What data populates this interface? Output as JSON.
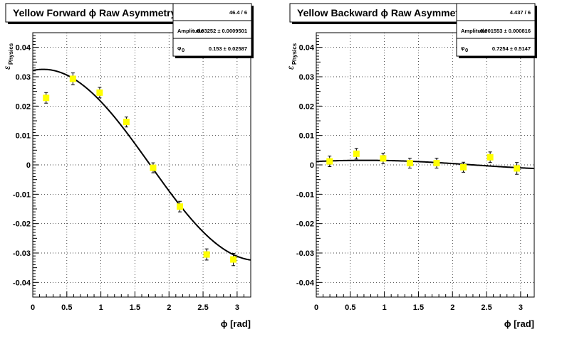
{
  "chart_data": [
    {
      "type": "scatter",
      "title": "Yellow Forward ϕ Raw Asymmetry",
      "xlabel": "ϕ [rad]",
      "ylabel": "ε",
      "ylabel_sub": "Physics",
      "xlim": [
        0,
        3.2
      ],
      "ylim": [
        -0.045,
        0.045
      ],
      "xticks": [
        "0",
        "0.5",
        "1",
        "1.5",
        "2",
        "2.5",
        "3"
      ],
      "yticks": [
        "0.04",
        "0.03",
        "0.02",
        "0.01",
        "0",
        "-0.01",
        "-0.02",
        "-0.03",
        "-0.04"
      ],
      "grid": true,
      "stats": {
        "header": "46.4 / 6",
        "rows": [
          {
            "label": "Amplitude",
            "value": "0.03252 ± 0.0009501"
          },
          {
            "label": "φ",
            "sub": "0",
            "value": "0.153 ± 0.02587"
          }
        ]
      },
      "points": [
        {
          "x": 0.196,
          "y": 0.0228,
          "err": 0.0018
        },
        {
          "x": 0.589,
          "y": 0.0293,
          "err": 0.002
        },
        {
          "x": 0.982,
          "y": 0.0246,
          "err": 0.0018
        },
        {
          "x": 1.374,
          "y": 0.0146,
          "err": 0.0017
        },
        {
          "x": 1.767,
          "y": -0.001,
          "err": 0.0017
        },
        {
          "x": 2.16,
          "y": -0.0142,
          "err": 0.0018
        },
        {
          "x": 2.553,
          "y": -0.0305,
          "err": 0.0019
        },
        {
          "x": 2.945,
          "y": -0.0322,
          "err": 0.0021
        }
      ],
      "fit": {
        "function": "amplitude*cos(x-phi0)",
        "amplitude": 0.03252,
        "phi0": 0.153
      }
    },
    {
      "type": "scatter",
      "title": "Yellow Backward ϕ Raw Asymmetry",
      "xlabel": "ϕ [rad]",
      "ylabel": "ε",
      "ylabel_sub": "Physics",
      "xlim": [
        0,
        3.2
      ],
      "ylim": [
        -0.045,
        0.045
      ],
      "xticks": [
        "0",
        "0.5",
        "1",
        "1.5",
        "2",
        "2.5",
        "3"
      ],
      "yticks": [
        "0.04",
        "0.03",
        "0.02",
        "0.01",
        "0",
        "-0.01",
        "-0.02",
        "-0.03",
        "-0.04"
      ],
      "grid": true,
      "stats": {
        "header": "4.437 / 6",
        "rows": [
          {
            "label": "Amplitude",
            "value": "0.001553 ± 0.000816"
          },
          {
            "label": "φ",
            "sub": "0",
            "value": "0.7254 ± 0.5147"
          }
        ]
      },
      "points": [
        {
          "x": 0.196,
          "y": 0.0012,
          "err": 0.0018
        },
        {
          "x": 0.589,
          "y": 0.0038,
          "err": 0.0018
        },
        {
          "x": 0.982,
          "y": 0.0022,
          "err": 0.0018
        },
        {
          "x": 1.374,
          "y": 0.0006,
          "err": 0.0017
        },
        {
          "x": 1.767,
          "y": 0.0006,
          "err": 0.0017
        },
        {
          "x": 2.16,
          "y": -0.0008,
          "err": 0.0017
        },
        {
          "x": 2.553,
          "y": 0.0026,
          "err": 0.0018
        },
        {
          "x": 2.945,
          "y": -0.0012,
          "err": 0.002
        }
      ],
      "fit": {
        "function": "amplitude*cos(x-phi0)",
        "amplitude": 0.001553,
        "phi0": 0.7254
      }
    }
  ]
}
